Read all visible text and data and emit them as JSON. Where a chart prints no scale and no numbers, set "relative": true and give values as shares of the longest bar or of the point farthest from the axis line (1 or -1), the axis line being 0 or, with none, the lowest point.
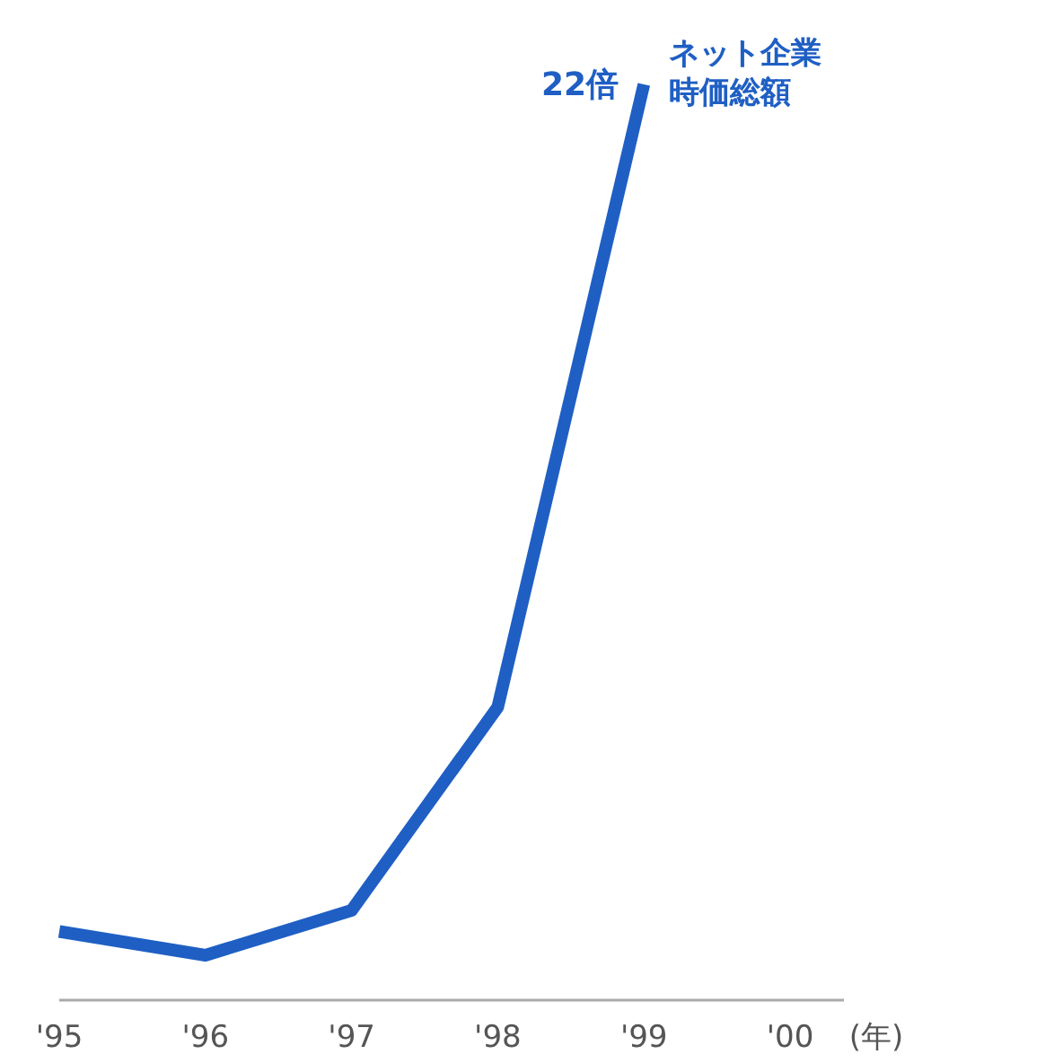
{
  "chart_data": {
    "type": "line",
    "relative": true,
    "xlabel": "(年)",
    "categories": [
      "'95",
      "'96",
      "'97",
      "'98",
      "'99",
      "'00"
    ],
    "series": [
      {
        "name": "ネット企業時価総額",
        "color": "#1f5fc4",
        "values": [
          0.075,
          0.049,
          0.098,
          0.32,
          1,
          null
        ]
      }
    ],
    "annotations": [
      {
        "text": "22倍",
        "x": "'99",
        "y": 1
      }
    ],
    "marker": "none"
  }
}
